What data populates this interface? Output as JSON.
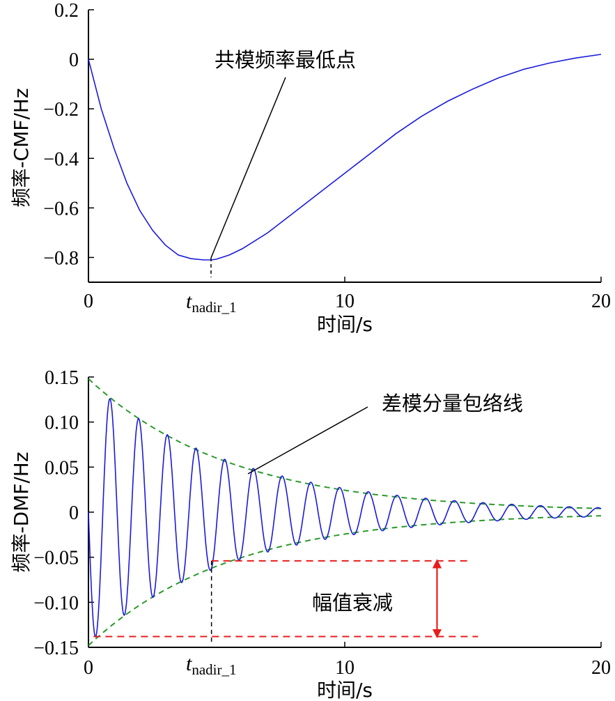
{
  "chart_data": [
    {
      "type": "line",
      "ylabel": "频率-CMF/Hz",
      "xlabel": "时间/s",
      "xlim": [
        0,
        20
      ],
      "ylim": [
        -0.9,
        0.2
      ],
      "xticks": [
        "0",
        "10",
        "20"
      ],
      "yticks": [
        "0.2",
        "0",
        "-0.2",
        "-0.4",
        "-0.6",
        "-0.8"
      ],
      "annotation": "共模频率最低点",
      "marker_label": {
        "base": "t",
        "sub": "nadir_1"
      },
      "marker_x": 4.8,
      "series": [
        {
          "color": "#1a1adb",
          "x": [
            0,
            0.5,
            1,
            1.5,
            2,
            2.5,
            3,
            3.5,
            4,
            4.5,
            4.8,
            5,
            5.5,
            6,
            7,
            8,
            9,
            10,
            11,
            12,
            13,
            14,
            15,
            16,
            17,
            18,
            19,
            20
          ],
          "y": [
            0,
            -0.2,
            -0.36,
            -0.5,
            -0.61,
            -0.69,
            -0.75,
            -0.79,
            -0.805,
            -0.81,
            -0.81,
            -0.807,
            -0.79,
            -0.765,
            -0.7,
            -0.62,
            -0.54,
            -0.46,
            -0.38,
            -0.3,
            -0.23,
            -0.17,
            -0.12,
            -0.075,
            -0.04,
            -0.015,
            0.005,
            0.02
          ]
        }
      ]
    },
    {
      "type": "line",
      "ylabel": "频率-DMF/Hz",
      "xlabel": "时间/s",
      "xlim": [
        0,
        20
      ],
      "ylim": [
        -0.15,
        0.15
      ],
      "xticks": [
        "0",
        "10",
        "20"
      ],
      "yticks": [
        "0.15",
        "0.10",
        "0.05",
        "0",
        "-0.05",
        "-0.10",
        "-0.15"
      ],
      "annotation": "差模分量包络线",
      "amplitude_label": "幅值衰减",
      "marker_label": {
        "base": "t",
        "sub": "nadir_1"
      },
      "marker_x": 4.8,
      "oscillation": {
        "amplitude": 0.145,
        "decay_rate": 0.17,
        "period": 1.12,
        "color": "#1a1adb"
      },
      "envelope": {
        "start": 0.148,
        "end": 0.004,
        "color": "#2a9a2a"
      },
      "amplitude_marks": {
        "upper_y": -0.054,
        "lower_y": -0.138,
        "color": "#e81c1c"
      }
    }
  ]
}
